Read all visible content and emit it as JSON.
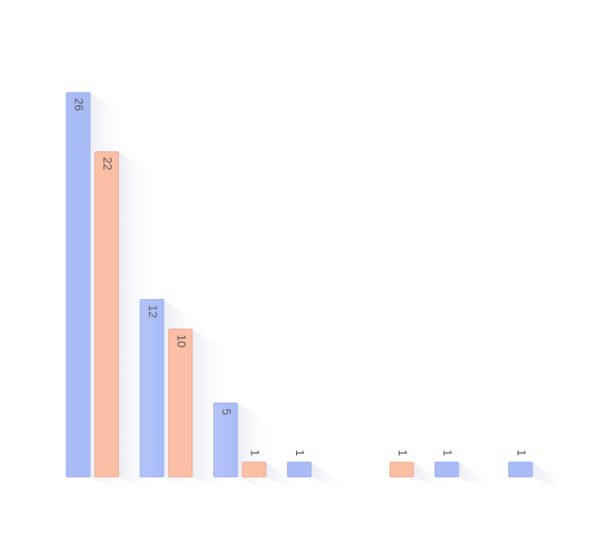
{
  "chart_data": {
    "type": "bar",
    "categories": [
      null,
      null,
      null,
      null,
      null,
      null,
      null
    ],
    "series": [
      {
        "color": "#aabcf8",
        "values": [
          26,
          12,
          5,
          1,
          null,
          1,
          1
        ]
      },
      {
        "color": "#fbbfa6",
        "values": [
          22,
          10,
          1,
          null,
          1,
          null,
          null
        ]
      }
    ],
    "ylim": [
      0,
      26
    ]
  }
}
